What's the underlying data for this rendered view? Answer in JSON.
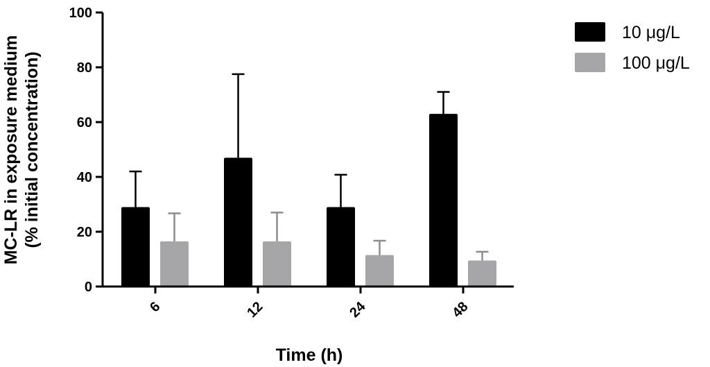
{
  "chart_data": {
    "type": "bar",
    "categories": [
      "6",
      "12",
      "24",
      "48"
    ],
    "series": [
      {
        "name": "10 μg/L",
        "color": "#000000",
        "values": [
          29,
          47,
          29,
          63
        ],
        "error": [
          13,
          30.5,
          11.8,
          8
        ]
      },
      {
        "name": "100 μg/L",
        "color": "#a6a6a8",
        "values": [
          16.5,
          16.5,
          11.5,
          9.5
        ],
        "error": [
          10.2,
          10.5,
          5.2,
          3.2
        ]
      }
    ],
    "xlabel": "Time (h)",
    "ylabel_line1": "MC-LR in exposure medium",
    "ylabel_line2": "(% initial concentration)",
    "ylim": [
      0,
      100
    ],
    "yticks": [
      0,
      20,
      40,
      60,
      80,
      100
    ],
    "grid": false,
    "legend_position": "top-right",
    "error_bars": "upper"
  }
}
